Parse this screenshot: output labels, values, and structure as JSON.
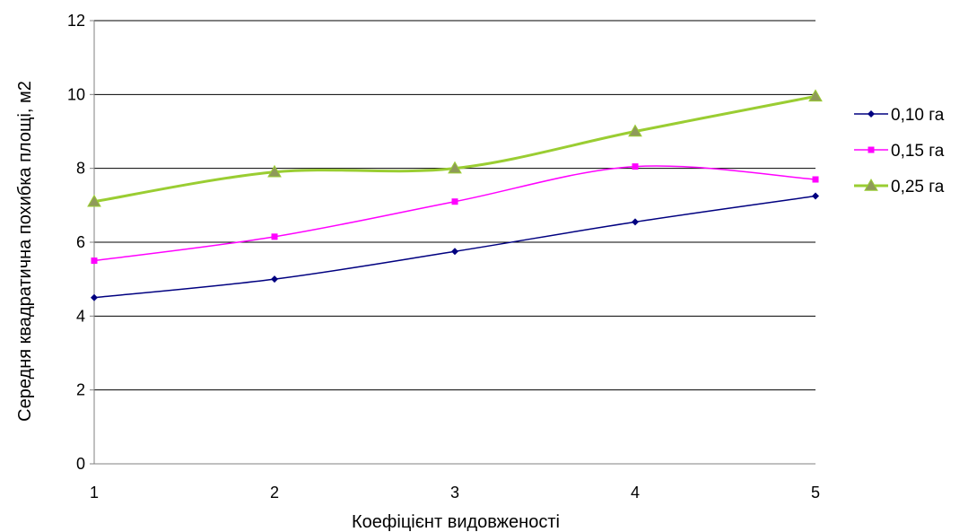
{
  "chart_data": {
    "type": "line",
    "title": "",
    "xlabel": "Коефіцієнт видовженості",
    "ylabel": "Середня квадратична похибка площі, м2",
    "x": [
      1,
      2,
      3,
      4,
      5
    ],
    "xlim": [
      1,
      5
    ],
    "ylim": [
      0,
      12
    ],
    "yticks": [
      0,
      2,
      4,
      6,
      8,
      10,
      12
    ],
    "grid": "horizontal",
    "legend_position": "right",
    "series": [
      {
        "name": "0,10 га",
        "values": [
          4.5,
          5.0,
          5.75,
          6.55,
          7.25
        ],
        "color": "#000080",
        "marker": "diamond"
      },
      {
        "name": "0,15 га",
        "values": [
          5.5,
          6.15,
          7.1,
          8.05,
          7.7
        ],
        "color": "#ff00ff",
        "marker": "square"
      },
      {
        "name": "0,25 га",
        "values": [
          7.1,
          7.9,
          8.0,
          9.0,
          9.95
        ],
        "color": "#9acd32",
        "marker": "triangle"
      }
    ]
  }
}
